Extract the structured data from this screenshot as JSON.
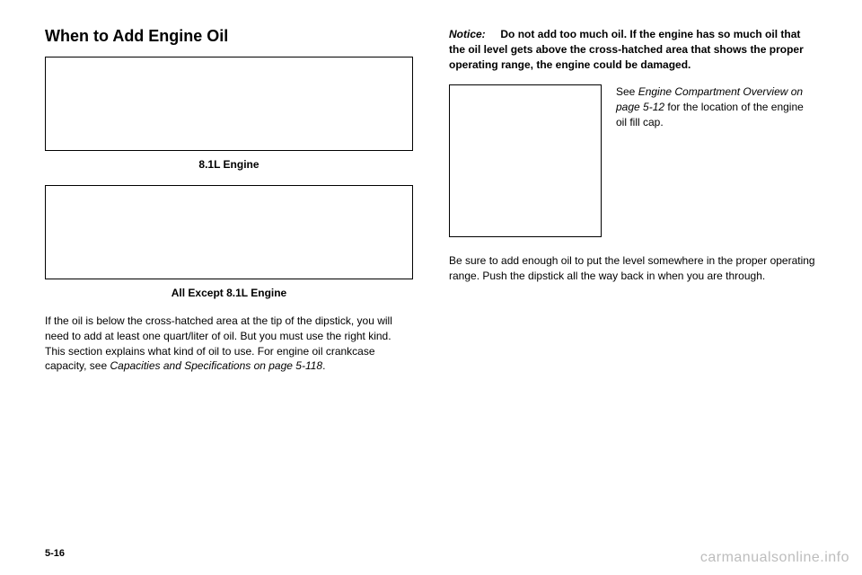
{
  "left": {
    "heading": "When to Add Engine Oil",
    "caption1": "8.1L Engine",
    "caption2": "All Except 8.1L Engine",
    "para1_a": "If the oil is below the cross-hatched area at the tip of the dipstick, you will need to add at least one quart/liter of oil. But you must use the right kind. This section explains what kind of oil to use. For engine oil crankcase capacity, see ",
    "para1_italic": "Capacities and Specifications on page 5-118",
    "para1_b": "."
  },
  "right": {
    "notice_label": "Notice:",
    "notice_body": "Do not add too much oil. If the engine has so much oil that the oil level gets above the cross-hatched area that shows the proper operating range, the engine could be damaged.",
    "row_a": "See ",
    "row_italic": "Engine Compartment Overview on page 5-12",
    "row_b": " for the location of the engine oil fill cap.",
    "para2": "Be sure to add enough oil to put the level somewhere in the proper operating range. Push the dipstick all the way back in when you are through."
  },
  "page_num": "5-16",
  "watermark": "carmanualsonline.info"
}
